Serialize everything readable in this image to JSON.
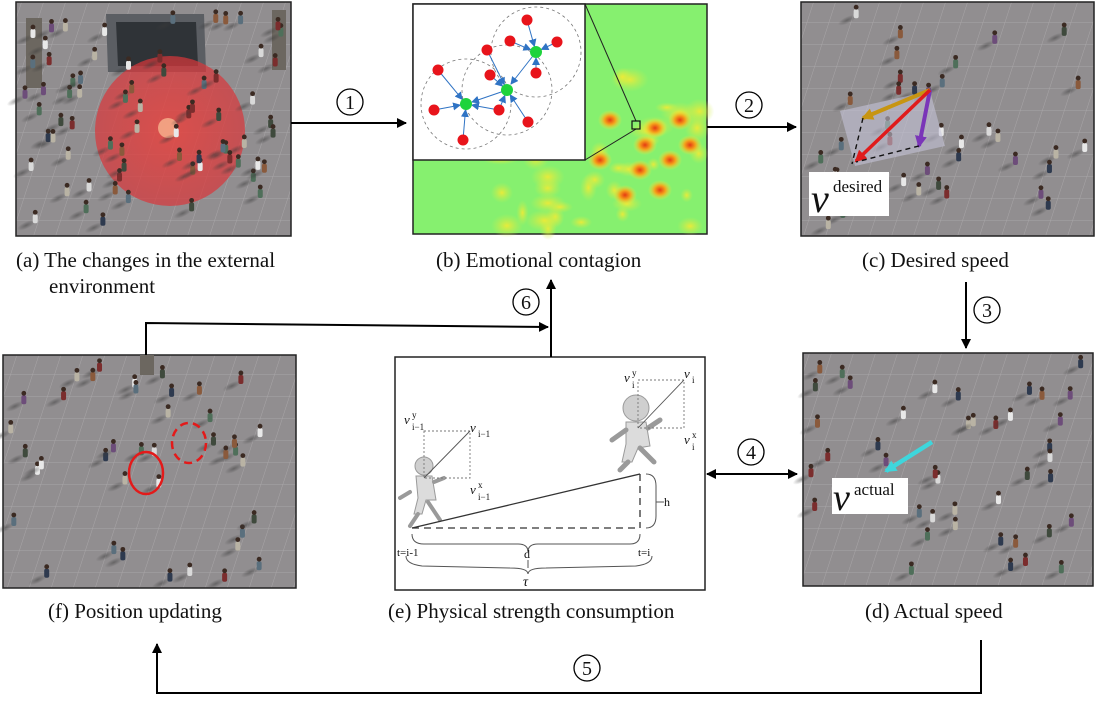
{
  "panels": {
    "a": {
      "caption_line1": "(a) The changes in the external",
      "caption_line2": "environment"
    },
    "b": {
      "caption": "(b) Emotional contagion"
    },
    "c": {
      "caption": "(c) Desired speed",
      "vector_symbol": "v",
      "vector_superscript": "desired"
    },
    "d": {
      "caption": "(d) Actual speed",
      "vector_symbol": "v",
      "vector_superscript": "actual"
    },
    "e": {
      "caption": "(e) Physical strength consumption",
      "labels": {
        "v_prev_y": "v",
        "v_prev_y_sup": "y",
        "v_prev_y_sub": "i−1",
        "v_prev": "v",
        "v_prev_sub": "i−1",
        "v_prev_x": "v",
        "v_prev_x_sup": "x",
        "v_prev_x_sub": "i−1",
        "v_cur_y": "v",
        "v_cur_y_sup": "y",
        "v_cur_y_sub": "i",
        "v_cur": "v",
        "v_cur_sub": "i",
        "v_cur_x": "v",
        "v_cur_x_sup": "x",
        "v_cur_x_sub": "i",
        "h": "h",
        "d": "d",
        "tau": "τ",
        "t_start": "t=i-1",
        "t_end": "t=i"
      }
    },
    "f": {
      "caption": "(f) Position updating"
    }
  },
  "steps": [
    "1",
    "2",
    "3",
    "4",
    "5",
    "6"
  ],
  "colors": {
    "scene_floor": "#8f8c8e",
    "heat_background": "#86f06f",
    "red_zone": "#e0383a",
    "node_red": "#e8141b",
    "node_green": "#1ed33c",
    "edge_blue": "#2f73c4",
    "arrow_gold": "#c79512",
    "arrow_purple": "#7a35b8",
    "arrow_red": "#e01b1b",
    "arrow_cyan": "#3ed6dc"
  }
}
